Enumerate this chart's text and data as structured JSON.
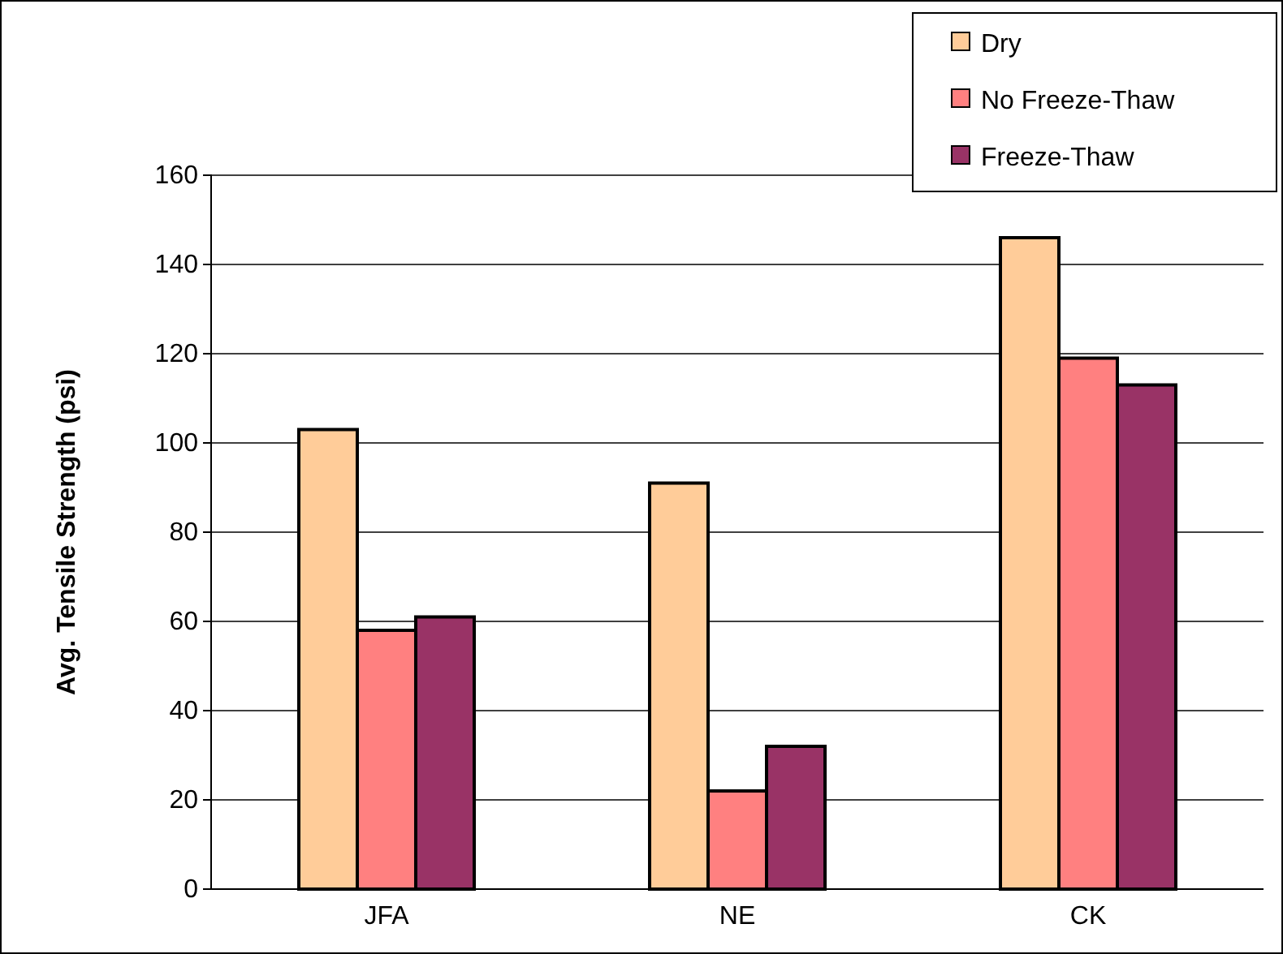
{
  "chart_data": {
    "type": "bar",
    "ylabel": "Avg. Tensile Strength (psi)",
    "categories": [
      "JFA",
      "NE",
      "CK"
    ],
    "series": [
      {
        "name": "Dry",
        "color": "#ffcc99",
        "values": [
          103,
          91,
          146
        ]
      },
      {
        "name": "No Freeze-Thaw",
        "color": "#ff8080",
        "values": [
          58,
          22,
          119
        ]
      },
      {
        "name": "Freeze-Thaw",
        "color": "#993366",
        "values": [
          61,
          32,
          113
        ]
      }
    ],
    "ylim": [
      0,
      160
    ],
    "yticks": [
      0,
      20,
      40,
      60,
      80,
      100,
      120,
      140,
      160
    ],
    "grid": "y",
    "legend": "top right"
  }
}
